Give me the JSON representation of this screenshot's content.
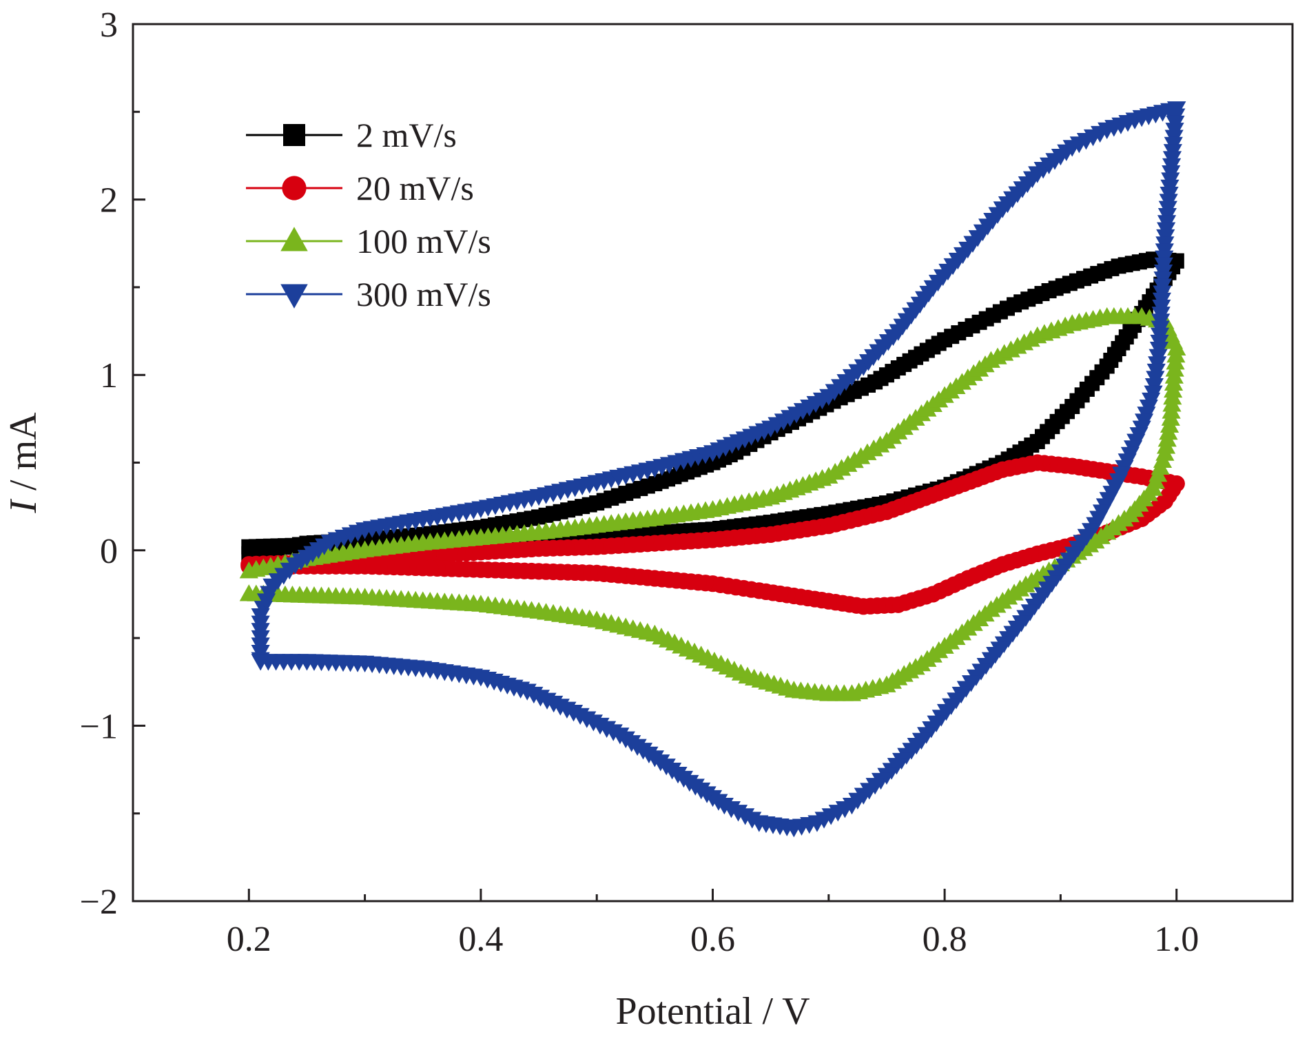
{
  "chart_data": {
    "type": "line",
    "title": "",
    "xlabel": "Potential / V",
    "ylabel_italic": "I",
    "ylabel_rest": " / mA",
    "xlim": [
      0.1,
      1.1
    ],
    "ylim": [
      -2,
      3
    ],
    "x_ticks": [
      0.2,
      0.4,
      0.6,
      0.8,
      1.0
    ],
    "x_tick_labels": [
      "0.2",
      "0.4",
      "0.6",
      "0.8",
      "1.0"
    ],
    "y_ticks": [
      -2,
      -1,
      0,
      1,
      2,
      3
    ],
    "y_tick_labels": [
      "−2",
      "−1",
      "0",
      "1",
      "2",
      "3"
    ],
    "grid": false,
    "legend_position": "top-left",
    "series": [
      {
        "name": "2 mV/s",
        "color": "#000000",
        "marker": "square",
        "anodic": [
          [
            0.2,
            0.02
          ],
          [
            0.25,
            0.03
          ],
          [
            0.3,
            0.04
          ],
          [
            0.35,
            0.05
          ],
          [
            0.4,
            0.06
          ],
          [
            0.45,
            0.07
          ],
          [
            0.5,
            0.09
          ],
          [
            0.55,
            0.1
          ],
          [
            0.6,
            0.12
          ],
          [
            0.65,
            0.16
          ],
          [
            0.7,
            0.21
          ],
          [
            0.75,
            0.27
          ],
          [
            0.8,
            0.36
          ],
          [
            0.85,
            0.5
          ],
          [
            0.88,
            0.62
          ],
          [
            0.91,
            0.82
          ],
          [
            0.94,
            1.05
          ],
          [
            0.96,
            1.25
          ],
          [
            0.98,
            1.45
          ],
          [
            1.0,
            1.65
          ]
        ],
        "cathodic": [
          [
            1.0,
            1.65
          ],
          [
            0.98,
            1.66
          ],
          [
            0.95,
            1.62
          ],
          [
            0.92,
            1.55
          ],
          [
            0.89,
            1.48
          ],
          [
            0.86,
            1.4
          ],
          [
            0.83,
            1.3
          ],
          [
            0.8,
            1.2
          ],
          [
            0.77,
            1.08
          ],
          [
            0.74,
            0.96
          ],
          [
            0.71,
            0.87
          ],
          [
            0.68,
            0.77
          ],
          [
            0.65,
            0.67
          ],
          [
            0.62,
            0.56
          ],
          [
            0.6,
            0.5
          ],
          [
            0.55,
            0.38
          ],
          [
            0.5,
            0.27
          ],
          [
            0.45,
            0.19
          ],
          [
            0.4,
            0.13
          ],
          [
            0.35,
            0.09
          ],
          [
            0.3,
            0.06
          ],
          [
            0.25,
            0.04
          ],
          [
            0.2,
            -0.02
          ]
        ]
      },
      {
        "name": "20 mV/s",
        "color": "#d7000f",
        "marker": "circle",
        "anodic": [
          [
            0.2,
            -0.08
          ],
          [
            0.25,
            -0.07
          ],
          [
            0.3,
            -0.05
          ],
          [
            0.35,
            -0.03
          ],
          [
            0.4,
            -0.01
          ],
          [
            0.45,
            0.01
          ],
          [
            0.5,
            0.02
          ],
          [
            0.55,
            0.04
          ],
          [
            0.6,
            0.06
          ],
          [
            0.65,
            0.09
          ],
          [
            0.7,
            0.14
          ],
          [
            0.75,
            0.22
          ],
          [
            0.8,
            0.34
          ],
          [
            0.85,
            0.46
          ],
          [
            0.88,
            0.5
          ],
          [
            0.91,
            0.48
          ],
          [
            0.94,
            0.45
          ],
          [
            0.97,
            0.42
          ],
          [
            1.0,
            0.38
          ]
        ],
        "cathodic": [
          [
            1.0,
            0.38
          ],
          [
            0.99,
            0.28
          ],
          [
            0.97,
            0.18
          ],
          [
            0.94,
            0.1
          ],
          [
            0.91,
            0.03
          ],
          [
            0.88,
            -0.02
          ],
          [
            0.85,
            -0.08
          ],
          [
            0.82,
            -0.16
          ],
          [
            0.79,
            -0.25
          ],
          [
            0.76,
            -0.31
          ],
          [
            0.73,
            -0.32
          ],
          [
            0.7,
            -0.29
          ],
          [
            0.67,
            -0.26
          ],
          [
            0.64,
            -0.23
          ],
          [
            0.6,
            -0.19
          ],
          [
            0.55,
            -0.16
          ],
          [
            0.5,
            -0.13
          ],
          [
            0.45,
            -0.12
          ],
          [
            0.4,
            -0.11
          ],
          [
            0.35,
            -0.1
          ],
          [
            0.3,
            -0.09
          ],
          [
            0.25,
            -0.09
          ],
          [
            0.2,
            -0.09
          ]
        ]
      },
      {
        "name": "100 mV/s",
        "color": "#7ab51d",
        "marker": "triangle-up",
        "anodic": [
          [
            0.2,
            -0.12
          ],
          [
            0.25,
            -0.05
          ],
          [
            0.3,
            0.0
          ],
          [
            0.35,
            0.04
          ],
          [
            0.4,
            0.07
          ],
          [
            0.45,
            0.1
          ],
          [
            0.5,
            0.14
          ],
          [
            0.55,
            0.18
          ],
          [
            0.6,
            0.23
          ],
          [
            0.65,
            0.3
          ],
          [
            0.7,
            0.42
          ],
          [
            0.75,
            0.62
          ],
          [
            0.8,
            0.88
          ],
          [
            0.84,
            1.08
          ],
          [
            0.88,
            1.22
          ],
          [
            0.91,
            1.29
          ],
          [
            0.94,
            1.33
          ],
          [
            0.97,
            1.33
          ],
          [
            0.99,
            1.3
          ],
          [
            1.0,
            1.15
          ]
        ],
        "cathodic": [
          [
            1.0,
            1.15
          ],
          [
            0.995,
            0.75
          ],
          [
            0.99,
            0.55
          ],
          [
            0.98,
            0.35
          ],
          [
            0.96,
            0.2
          ],
          [
            0.93,
            0.05
          ],
          [
            0.9,
            -0.08
          ],
          [
            0.87,
            -0.2
          ],
          [
            0.84,
            -0.34
          ],
          [
            0.81,
            -0.5
          ],
          [
            0.78,
            -0.65
          ],
          [
            0.75,
            -0.77
          ],
          [
            0.72,
            -0.82
          ],
          [
            0.7,
            -0.82
          ],
          [
            0.67,
            -0.8
          ],
          [
            0.63,
            -0.72
          ],
          [
            0.59,
            -0.6
          ],
          [
            0.55,
            -0.48
          ],
          [
            0.5,
            -0.4
          ],
          [
            0.45,
            -0.35
          ],
          [
            0.4,
            -0.31
          ],
          [
            0.35,
            -0.29
          ],
          [
            0.3,
            -0.27
          ],
          [
            0.25,
            -0.26
          ],
          [
            0.2,
            -0.25
          ]
        ]
      },
      {
        "name": "300 mV/s",
        "color": "#1c3f9b",
        "marker": "triangle-down",
        "anodic": [
          [
            0.21,
            -0.62
          ],
          [
            0.21,
            -0.37
          ],
          [
            0.22,
            -0.2
          ],
          [
            0.24,
            -0.08
          ],
          [
            0.27,
            0.05
          ],
          [
            0.3,
            0.12
          ],
          [
            0.35,
            0.18
          ],
          [
            0.4,
            0.24
          ],
          [
            0.45,
            0.31
          ],
          [
            0.5,
            0.39
          ],
          [
            0.55,
            0.47
          ],
          [
            0.6,
            0.56
          ],
          [
            0.65,
            0.7
          ],
          [
            0.7,
            0.88
          ],
          [
            0.73,
            1.05
          ],
          [
            0.76,
            1.25
          ],
          [
            0.79,
            1.5
          ],
          [
            0.82,
            1.72
          ],
          [
            0.85,
            1.95
          ],
          [
            0.88,
            2.15
          ],
          [
            0.91,
            2.3
          ],
          [
            0.94,
            2.4
          ],
          [
            0.97,
            2.47
          ],
          [
            1.0,
            2.52
          ]
        ],
        "cathodic": [
          [
            1.0,
            2.52
          ],
          [
            0.99,
            1.75
          ],
          [
            0.985,
            1.15
          ],
          [
            0.98,
            0.9
          ],
          [
            0.97,
            0.7
          ],
          [
            0.95,
            0.4
          ],
          [
            0.93,
            0.15
          ],
          [
            0.9,
            -0.12
          ],
          [
            0.87,
            -0.38
          ],
          [
            0.84,
            -0.62
          ],
          [
            0.81,
            -0.85
          ],
          [
            0.78,
            -1.08
          ],
          [
            0.75,
            -1.28
          ],
          [
            0.72,
            -1.45
          ],
          [
            0.69,
            -1.55
          ],
          [
            0.67,
            -1.58
          ],
          [
            0.64,
            -1.55
          ],
          [
            0.61,
            -1.45
          ],
          [
            0.58,
            -1.32
          ],
          [
            0.55,
            -1.18
          ],
          [
            0.52,
            -1.05
          ],
          [
            0.48,
            -0.92
          ],
          [
            0.44,
            -0.8
          ],
          [
            0.4,
            -0.72
          ],
          [
            0.35,
            -0.67
          ],
          [
            0.3,
            -0.64
          ],
          [
            0.25,
            -0.63
          ],
          [
            0.21,
            -0.63
          ]
        ]
      }
    ]
  }
}
